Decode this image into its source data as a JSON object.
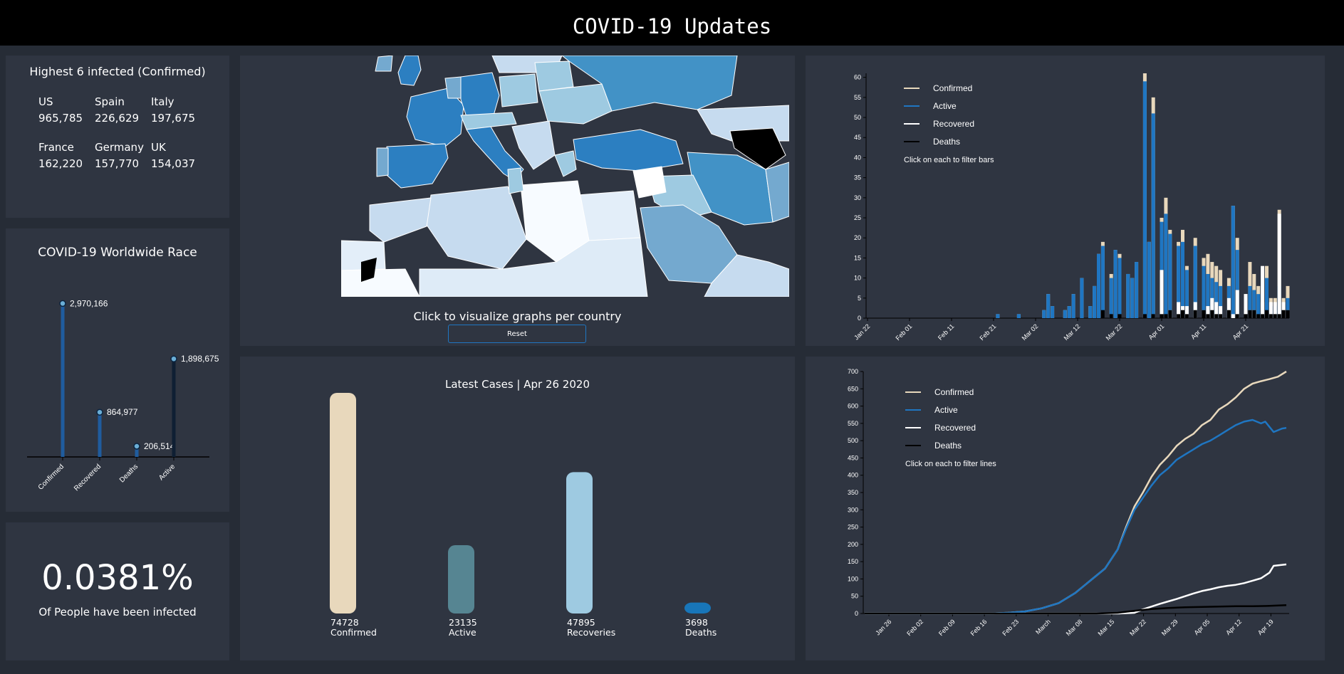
{
  "header": {
    "title": "COVID-19 Updates"
  },
  "top6": {
    "title": "Highest 6 infected (Confirmed)",
    "countries": [
      {
        "name": "US",
        "value": "965,785"
      },
      {
        "name": "Spain",
        "value": "226,629"
      },
      {
        "name": "Italy",
        "value": "197,675"
      },
      {
        "name": "France",
        "value": "162,220"
      },
      {
        "name": "Germany",
        "value": "157,770"
      },
      {
        "name": "UK",
        "value": "154,037"
      }
    ]
  },
  "race": {
    "title": "COVID-19 Worldwide Race"
  },
  "rate": {
    "value": "0.0381%",
    "label": "Of People have been infected"
  },
  "map": {
    "caption": "Click to visualize graphs per country",
    "reset_label": "Reset"
  },
  "latest": {
    "title": "Latest Cases | Apr 26 2020"
  },
  "colors": {
    "confirmed": "#e8d8bc",
    "active": "#1f76c2",
    "recovered": "#ffffff",
    "deaths": "#000000",
    "panel": "#2f3541",
    "background": "#262c36"
  },
  "chart_data": [
    {
      "type": "bar",
      "name": "worldwide-race",
      "categories": [
        "Confirmed",
        "Recovered",
        "Deaths",
        "Active"
      ],
      "values": [
        2970166,
        864977,
        206514,
        1898675
      ],
      "labels": [
        "2,970,166",
        "864,977",
        "206,514",
        "1,898,675"
      ],
      "ylim": [
        0,
        3100000
      ]
    },
    {
      "type": "bar",
      "name": "latest-cases",
      "categories": [
        "Confirmed",
        "Active",
        "Recoveries",
        "Deaths"
      ],
      "values": [
        74728,
        23135,
        47895,
        3698
      ],
      "colors": [
        "#e8d8bc",
        "#568592",
        "#9ecae1",
        "#1876b9"
      ]
    },
    {
      "type": "bar",
      "name": "daily-new-cases",
      "legend": [
        "Confirmed",
        "Active",
        "Recovered",
        "Deaths"
      ],
      "hint": "Click on each to filter bars",
      "xticks": [
        "Jan 22",
        "Feb 01",
        "Feb 11",
        "Feb 21",
        "Mar 02",
        "Mar 12",
        "Mar 22",
        "Apr 01",
        "Apr 11",
        "Apr 21"
      ],
      "yticks": [
        0,
        5,
        10,
        15,
        20,
        25,
        30,
        35,
        40,
        45,
        50,
        55,
        60
      ],
      "ylim": [
        0,
        61
      ],
      "x_start": "2020-01-22",
      "series": [
        {
          "name": "Confirmed",
          "values": [
            0,
            0,
            0,
            0,
            0,
            0,
            0,
            0,
            0,
            0,
            0,
            0,
            0,
            0,
            0,
            0,
            0,
            0,
            0,
            0,
            0,
            0,
            0,
            0,
            0,
            0,
            0,
            0,
            0,
            0,
            0,
            1,
            0,
            0,
            0,
            0,
            1,
            0,
            0,
            0,
            0,
            0,
            2,
            6,
            3,
            0,
            0,
            2,
            3,
            6,
            0,
            10,
            0,
            3,
            8,
            16,
            19,
            0,
            11,
            17,
            16,
            0,
            11,
            10,
            14,
            0,
            61,
            19,
            55,
            0,
            25,
            30,
            22,
            0,
            19,
            22,
            13,
            0,
            20,
            0,
            15,
            16,
            14,
            13,
            12,
            0,
            10,
            28,
            20,
            0,
            6,
            14,
            11,
            8,
            4,
            13,
            5,
            5,
            27,
            5,
            8
          ]
        },
        {
          "name": "Active",
          "values": [
            0,
            0,
            0,
            0,
            0,
            0,
            0,
            0,
            0,
            0,
            0,
            0,
            0,
            0,
            0,
            0,
            0,
            0,
            0,
            0,
            0,
            0,
            0,
            0,
            0,
            0,
            0,
            0,
            0,
            0,
            0,
            1,
            0,
            0,
            0,
            0,
            1,
            0,
            0,
            0,
            0,
            0,
            2,
            6,
            3,
            0,
            0,
            2,
            3,
            6,
            0,
            10,
            0,
            3,
            8,
            16,
            18,
            0,
            10,
            17,
            15,
            0,
            11,
            10,
            14,
            0,
            59,
            19,
            51,
            0,
            24,
            26,
            21,
            0,
            18,
            19,
            12,
            0,
            18,
            0,
            13,
            11,
            10,
            9,
            8,
            0,
            8,
            28,
            17,
            0,
            3,
            8,
            7,
            6,
            2,
            10,
            3,
            3,
            8,
            1,
            5
          ]
        },
        {
          "name": "Recovered",
          "values": [
            0,
            0,
            0,
            0,
            0,
            0,
            0,
            0,
            0,
            0,
            0,
            0,
            0,
            0,
            0,
            0,
            0,
            0,
            0,
            0,
            0,
            0,
            0,
            0,
            0,
            0,
            0,
            0,
            0,
            0,
            0,
            0,
            0,
            0,
            0,
            0,
            0,
            0,
            0,
            0,
            0,
            0,
            0,
            0,
            0,
            0,
            0,
            0,
            0,
            0,
            0,
            0,
            0,
            0,
            0,
            0,
            0,
            0,
            0,
            0,
            0,
            0,
            0,
            0,
            0,
            0,
            0,
            0,
            0,
            0,
            12,
            0,
            2,
            0,
            4,
            3,
            3,
            0,
            4,
            0,
            2,
            3,
            5,
            4,
            3,
            0,
            5,
            1,
            7,
            0,
            6,
            2,
            2,
            0,
            13,
            1,
            4,
            4,
            26,
            4,
            2
          ]
        },
        {
          "name": "Deaths",
          "values": [
            0,
            0,
            0,
            0,
            0,
            0,
            0,
            0,
            0,
            0,
            0,
            0,
            0,
            0,
            0,
            0,
            0,
            0,
            0,
            0,
            0,
            0,
            0,
            0,
            0,
            0,
            0,
            0,
            0,
            0,
            0,
            0,
            0,
            0,
            0,
            0,
            0,
            0,
            0,
            0,
            0,
            0,
            0,
            0,
            0,
            0,
            0,
            0,
            0,
            0,
            0,
            0,
            0,
            0,
            0,
            0,
            2,
            0,
            1,
            0,
            1,
            0,
            0,
            0,
            0,
            0,
            1,
            0,
            1,
            0,
            1,
            1,
            2,
            0,
            1,
            2,
            1,
            0,
            2,
            0,
            2,
            1,
            2,
            1,
            1,
            0,
            2,
            0,
            1,
            0,
            1,
            2,
            2,
            1,
            1,
            2,
            1,
            1,
            1,
            2,
            2
          ]
        }
      ]
    },
    {
      "type": "line",
      "name": "cumulative-cases",
      "legend": [
        "Confirmed",
        "Active",
        "Recovered",
        "Deaths"
      ],
      "hint": "Click on each to filter lines",
      "xticks": [
        "Jan 26",
        "Feb 02",
        "Feb 09",
        "Feb 16",
        "Feb 23",
        "March",
        "Mar 08",
        "Mar 15",
        "Mar 22",
        "Mar 29",
        "Apr 05",
        "Apr 12",
        "Apr 19"
      ],
      "yticks": [
        0,
        50,
        100,
        150,
        200,
        250,
        300,
        350,
        400,
        450,
        500,
        550,
        600,
        650,
        700
      ],
      "ylim": [
        0,
        700
      ],
      "x_start": "2020-01-22",
      "series": [
        {
          "name": "Confirmed",
          "points": [
            [
              0,
              0
            ],
            [
              30,
              0
            ],
            [
              34,
              2
            ],
            [
              38,
              6
            ],
            [
              42,
              15
            ],
            [
              46,
              30
            ],
            [
              50,
              60
            ],
            [
              54,
              100
            ],
            [
              57,
              130
            ],
            [
              60,
              185
            ],
            [
              62,
              250
            ],
            [
              64,
              310
            ],
            [
              66,
              350
            ],
            [
              68,
              395
            ],
            [
              70,
              430
            ],
            [
              72,
              455
            ],
            [
              74,
              485
            ],
            [
              76,
              505
            ],
            [
              78,
              520
            ],
            [
              80,
              545
            ],
            [
              82,
              560
            ],
            [
              84,
              590
            ],
            [
              86,
              605
            ],
            [
              88,
              625
            ],
            [
              90,
              650
            ],
            [
              92,
              665
            ],
            [
              94,
              672
            ],
            [
              96,
              678
            ],
            [
              98,
              685
            ],
            [
              100,
              700
            ]
          ]
        },
        {
          "name": "Active",
          "points": [
            [
              0,
              0
            ],
            [
              30,
              0
            ],
            [
              34,
              2
            ],
            [
              38,
              6
            ],
            [
              42,
              15
            ],
            [
              46,
              30
            ],
            [
              50,
              60
            ],
            [
              54,
              100
            ],
            [
              57,
              130
            ],
            [
              60,
              185
            ],
            [
              62,
              245
            ],
            [
              64,
              300
            ],
            [
              66,
              335
            ],
            [
              68,
              370
            ],
            [
              70,
              400
            ],
            [
              72,
              420
            ],
            [
              74,
              445
            ],
            [
              76,
              460
            ],
            [
              78,
              475
            ],
            [
              80,
              490
            ],
            [
              82,
              500
            ],
            [
              84,
              515
            ],
            [
              86,
              530
            ],
            [
              88,
              545
            ],
            [
              90,
              555
            ],
            [
              92,
              560
            ],
            [
              94,
              550
            ],
            [
              95,
              555
            ],
            [
              97,
              525
            ],
            [
              99,
              535
            ],
            [
              100,
              537
            ]
          ]
        },
        {
          "name": "Recovered",
          "points": [
            [
              0,
              0
            ],
            [
              60,
              0
            ],
            [
              64,
              2
            ],
            [
              66,
              12
            ],
            [
              68,
              20
            ],
            [
              70,
              28
            ],
            [
              72,
              35
            ],
            [
              74,
              42
            ],
            [
              76,
              50
            ],
            [
              78,
              58
            ],
            [
              80,
              65
            ],
            [
              82,
              70
            ],
            [
              84,
              76
            ],
            [
              86,
              80
            ],
            [
              88,
              83
            ],
            [
              90,
              88
            ],
            [
              92,
              95
            ],
            [
              94,
              102
            ],
            [
              96,
              118
            ],
            [
              97,
              138
            ],
            [
              100,
              142
            ]
          ]
        },
        {
          "name": "Deaths",
          "points": [
            [
              0,
              0
            ],
            [
              55,
              0
            ],
            [
              60,
              2
            ],
            [
              64,
              8
            ],
            [
              68,
              13
            ],
            [
              72,
              16
            ],
            [
              76,
              18
            ],
            [
              80,
              19
            ],
            [
              84,
              20
            ],
            [
              88,
              21
            ],
            [
              92,
              21
            ],
            [
              96,
              22
            ],
            [
              100,
              24
            ]
          ]
        }
      ]
    }
  ]
}
